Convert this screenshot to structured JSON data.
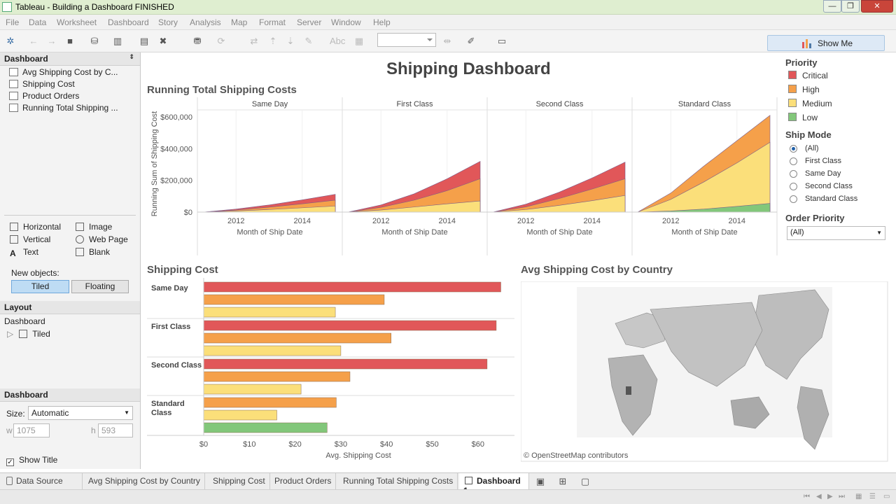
{
  "window": {
    "title": "Tableau - Building a Dashboard FINISHED",
    "min": "—",
    "max": "❐",
    "close": "✕"
  },
  "menu": [
    "File",
    "Data",
    "Worksheet",
    "Dashboard",
    "Story",
    "Analysis",
    "Map",
    "Format",
    "Server",
    "Window",
    "Help"
  ],
  "show_me": "Show Me",
  "left": {
    "dashboard_header": "Dashboard",
    "sheets": [
      "Avg Shipping Cost by C...",
      "Shipping Cost",
      "Product Orders",
      "Running Total Shipping ..."
    ],
    "objects": {
      "horizontal": "Horizontal",
      "vertical": "Vertical",
      "text": "Text",
      "image": "Image",
      "web_page": "Web Page",
      "blank": "Blank"
    },
    "new_objects_label": "New objects:",
    "tiled": "Tiled",
    "floating": "Floating",
    "layout_header": "Layout",
    "layout_root": "Dashboard",
    "layout_child": "Tiled",
    "dashboard2_header": "Dashboard",
    "size_label": "Size:",
    "size_value": "Automatic",
    "w_label": "w",
    "w_value": "1075",
    "h_label": "h",
    "h_value": "593",
    "show_title": "Show Title"
  },
  "dashboard_title": "Shipping Dashboard",
  "running_title": "Running Total Shipping Costs",
  "shipping_cost_title": "Shipping Cost",
  "map_title": "Avg Shipping Cost by Country",
  "map_credit": "© OpenStreetMap contributors",
  "legend": {
    "priority_header": "Priority",
    "priorities": [
      {
        "label": "Critical",
        "color": "#e15759"
      },
      {
        "label": "High",
        "color": "#f5a04a"
      },
      {
        "label": "Medium",
        "color": "#fbdf7a"
      },
      {
        "label": "Low",
        "color": "#82c77a"
      }
    ],
    "ship_mode_header": "Ship Mode",
    "ship_modes": [
      "(All)",
      "First Class",
      "Same Day",
      "Second Class",
      "Standard Class"
    ],
    "order_priority_header": "Order Priority",
    "order_priority_value": "(All)"
  },
  "tabs": {
    "data_source": "Data Source",
    "sheets": [
      "Avg Shipping Cost by Country",
      "Shipping Cost",
      "Product Orders",
      "Running Total Shipping Costs"
    ],
    "active": "Dashboard 1"
  },
  "chart_data": [
    {
      "type": "area",
      "title": "Running Total Shipping Costs",
      "ylabel": "Running Sum of Shipping Cost",
      "xlabel": "Month of Ship Date",
      "yticks": [
        "$0",
        "$200,000",
        "$400,000",
        "$600,000"
      ],
      "ylim": [
        0,
        600000
      ],
      "xticks": [
        "2012",
        "2014"
      ],
      "x": [
        "2011",
        "2012",
        "2013",
        "2014",
        "2015"
      ],
      "panels": [
        {
          "name": "Same Day",
          "series": [
            {
              "name": "Medium",
              "values": [
                0,
                7000,
                16000,
                27000,
                38000
              ]
            },
            {
              "name": "High",
              "values": [
                0,
                13000,
                31000,
                52000,
                75000
              ]
            },
            {
              "name": "Critical",
              "values": [
                0,
                19000,
                45000,
                77000,
                112000
              ]
            }
          ]
        },
        {
          "name": "First Class",
          "series": [
            {
              "name": "Medium",
              "values": [
                0,
                13000,
                32000,
                52000,
                70000
              ]
            },
            {
              "name": "High",
              "values": [
                0,
                30000,
                75000,
                135000,
                210000
              ]
            },
            {
              "name": "Critical",
              "values": [
                0,
                45000,
                115000,
                210000,
                320000
              ]
            }
          ]
        },
        {
          "name": "Second Class",
          "series": [
            {
              "name": "Medium",
              "values": [
                0,
                16000,
                42000,
                72000,
                105000
              ]
            },
            {
              "name": "High",
              "values": [
                0,
                33000,
                85000,
                145000,
                210000
              ]
            },
            {
              "name": "Critical",
              "values": [
                0,
                50000,
                125000,
                215000,
                315000
              ]
            }
          ]
        },
        {
          "name": "Standard Class",
          "series": [
            {
              "name": "Low",
              "values": [
                0,
                7000,
                19000,
                36000,
                55000
              ]
            },
            {
              "name": "Medium",
              "values": [
                0,
                80000,
                190000,
                310000,
                440000
              ]
            },
            {
              "name": "High",
              "values": [
                0,
                120000,
                290000,
                450000,
                610000
              ]
            }
          ]
        }
      ]
    },
    {
      "type": "bar",
      "title": "Shipping Cost",
      "xlabel": "Avg. Shipping Cost",
      "xticks": [
        "$0",
        "$10",
        "$20",
        "$30",
        "$40",
        "$50",
        "$60"
      ],
      "xlim": [
        0,
        66
      ],
      "groups": [
        {
          "name": "Same Day",
          "bars": [
            {
              "priority": "Critical",
              "value": 65
            },
            {
              "priority": "High",
              "value": 39.5
            },
            {
              "priority": "Medium",
              "value": 28.8
            }
          ]
        },
        {
          "name": "First Class",
          "bars": [
            {
              "priority": "Critical",
              "value": 64
            },
            {
              "priority": "High",
              "value": 41
            },
            {
              "priority": "Medium",
              "value": 30
            }
          ]
        },
        {
          "name": "Second Class",
          "bars": [
            {
              "priority": "Critical",
              "value": 62
            },
            {
              "priority": "High",
              "value": 32
            },
            {
              "priority": "Medium",
              "value": 21.3
            }
          ]
        },
        {
          "name": "Standard Class",
          "bars": [
            {
              "priority": "High",
              "value": 29
            },
            {
              "priority": "Medium",
              "value": 16
            },
            {
              "priority": "Low",
              "value": 27
            }
          ]
        }
      ]
    }
  ]
}
